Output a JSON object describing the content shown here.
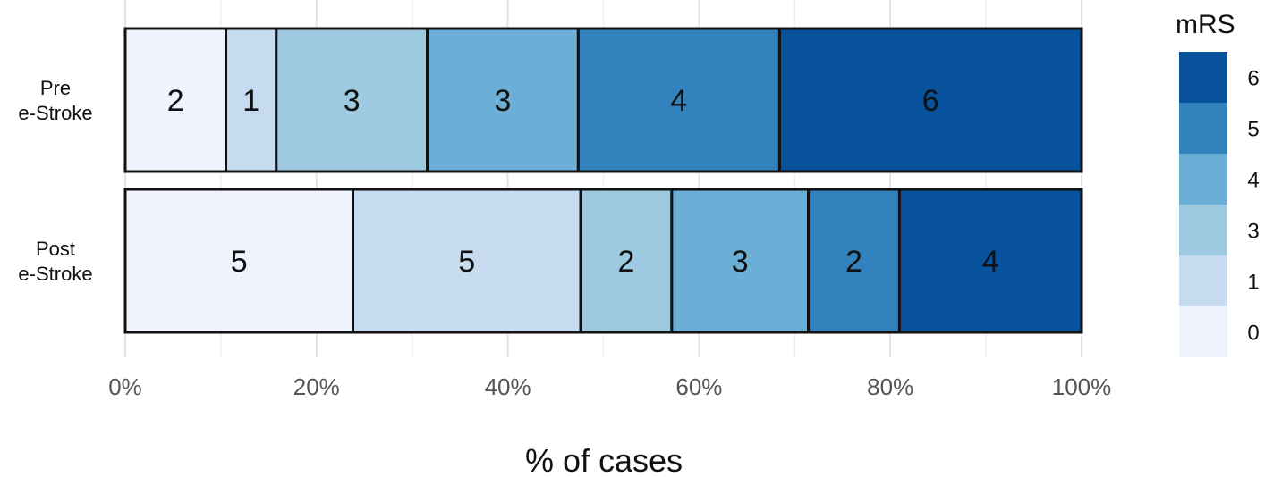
{
  "chart_data": {
    "type": "bar",
    "orientation": "horizontal",
    "stacked": true,
    "normalized_to_percent": true,
    "categories": [
      "Pre e-Stroke",
      "Post e-Stroke"
    ],
    "category_label_lines": [
      [
        "Pre",
        "e-Stroke"
      ],
      [
        "Post",
        "e-Stroke"
      ]
    ],
    "series": [
      {
        "name": "0",
        "color": "#eff3fe",
        "values": [
          2,
          5
        ]
      },
      {
        "name": "1",
        "color": "#c6dbef",
        "values": [
          1,
          5
        ]
      },
      {
        "name": "3",
        "color": "#9ecae1",
        "values": [
          3,
          2
        ]
      },
      {
        "name": "4",
        "color": "#6baed6",
        "values": [
          3,
          3
        ]
      },
      {
        "name": "5",
        "color": "#3182bd",
        "values": [
          4,
          2
        ]
      },
      {
        "name": "6",
        "color": "#08519c",
        "values": [
          6,
          4
        ]
      }
    ],
    "xlabel": "% of cases",
    "ylabel": "",
    "xlim": [
      0,
      100
    ],
    "xticks": [
      0,
      20,
      40,
      60,
      80,
      100
    ],
    "xtick_labels": [
      "0%",
      "20%",
      "40%",
      "60%",
      "80%",
      "100%"
    ],
    "grid": true,
    "legend": {
      "title": "mRS",
      "position": "right",
      "order": [
        "6",
        "5",
        "4",
        "3",
        "1",
        "0"
      ]
    }
  }
}
